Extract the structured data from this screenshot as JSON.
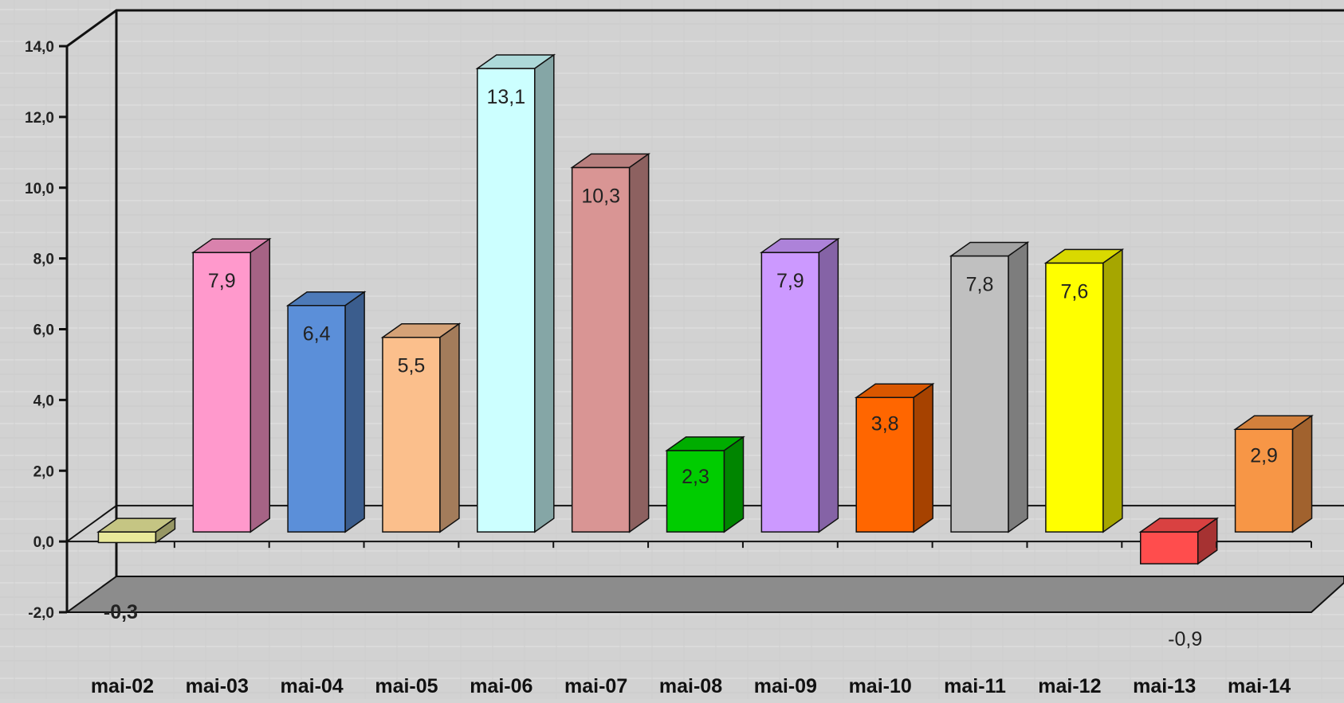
{
  "chart_data": {
    "type": "bar",
    "style": "3d-column",
    "title": "",
    "xlabel": "",
    "ylabel": "",
    "categories": [
      "mai-02",
      "mai-03",
      "mai-04",
      "mai-05",
      "mai-06",
      "mai-07",
      "mai-08",
      "mai-09",
      "mai-10",
      "mai-11",
      "mai-12",
      "mai-13",
      "mai-14"
    ],
    "values": [
      -0.3,
      7.9,
      6.4,
      5.5,
      13.1,
      10.3,
      2.3,
      7.9,
      3.8,
      7.8,
      7.6,
      -0.9,
      2.9
    ],
    "value_labels": [
      "-0,3",
      "7,9",
      "6,4",
      "5,5",
      "13,1",
      "10,3",
      "2,3",
      "7,9",
      "3,8",
      "7,8",
      "7,6",
      "-0,9",
      "2,9"
    ],
    "yticks": [
      "-2,0",
      "0,0",
      "2,0",
      "4,0",
      "6,0",
      "8,0",
      "10,0",
      "12,0",
      "14,0"
    ],
    "ylim": [
      -2,
      14
    ],
    "grid": false,
    "legend": "none",
    "colors": {
      "background": "#d4d4d4",
      "floor": "#8c8c8c",
      "text": "#222222",
      "bars": [
        "#e8e89a",
        "#ff99cc",
        "#5b8fd9",
        "#fbbf8c",
        "#ccffff",
        "#d99594",
        "#00cc00",
        "#cc99ff",
        "#ff6600",
        "#c0c0c0",
        "#ffff00",
        "#ff4d4d",
        "#f79646"
      ]
    }
  }
}
